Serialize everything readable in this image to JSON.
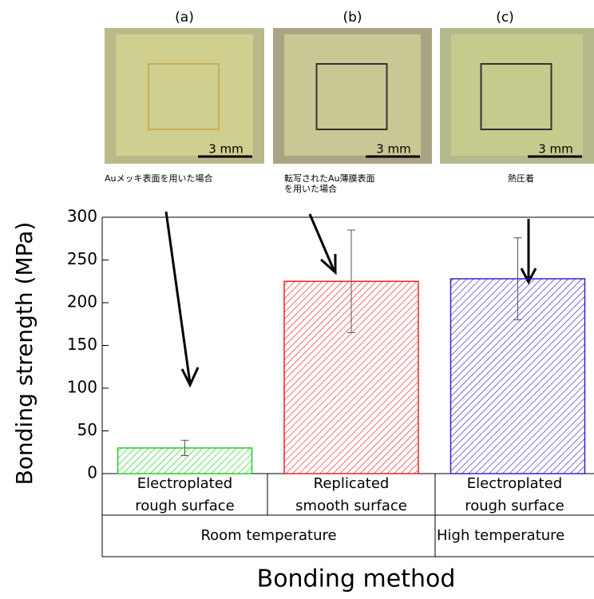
{
  "photos": [
    {
      "label": "(a)",
      "scale": "3 mm",
      "caption": [
        "Auメッキ表面を用いた場合"
      ]
    },
    {
      "label": "(b)",
      "scale": "3 mm",
      "caption": [
        "転写されたAu薄膜表面",
        "を用いた場合"
      ]
    },
    {
      "label": "(c)",
      "scale": "3 mm",
      "caption": [
        "熱圧着"
      ]
    }
  ],
  "chart_data": {
    "type": "bar",
    "y_label": "Bonding strength (MPa)",
    "x_label": "Bonding method",
    "categories": [
      "Electroplated rough surface",
      "Replicated smooth surface",
      "Electroplated rough surface"
    ],
    "groups": [
      {
        "name": "Room temperature",
        "span": 2
      },
      {
        "name": "High temperature",
        "span": 1
      }
    ],
    "values": [
      30,
      225,
      228
    ],
    "errors": [
      9,
      60,
      48
    ],
    "colors": [
      "#22cc22",
      "#ee2222",
      "#3322cc"
    ],
    "ylim": [
      0,
      300
    ],
    "yticks": [
      0,
      50,
      100,
      150,
      200,
      250,
      300
    ]
  }
}
